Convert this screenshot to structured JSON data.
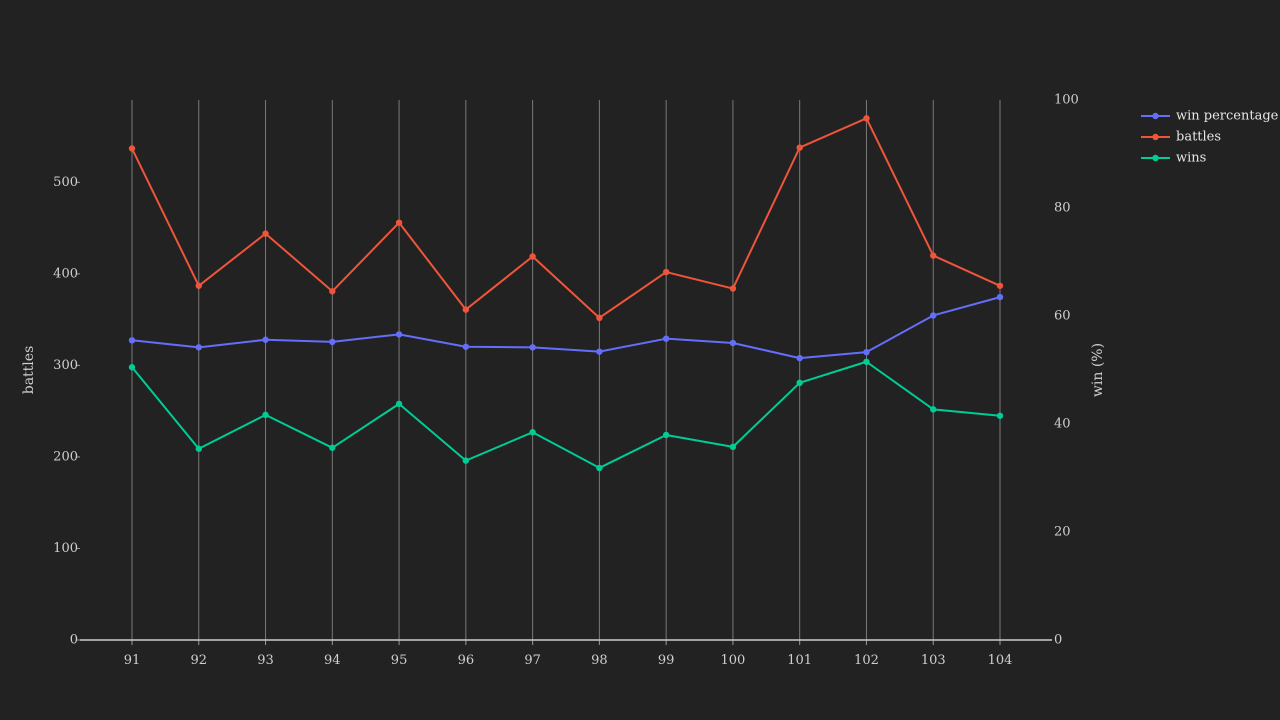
{
  "chart_data": {
    "type": "line",
    "x": [
      "91",
      "92",
      "93",
      "94",
      "95",
      "96",
      "97",
      "98",
      "99",
      "100",
      "101",
      "102",
      "103",
      "104"
    ],
    "series": [
      {
        "name": "win percentage",
        "axis": "right",
        "color": "#636efa",
        "values": [
          55.5,
          54.2,
          55.6,
          55.2,
          56.6,
          54.3,
          54.2,
          53.4,
          55.8,
          55.0,
          52.2,
          53.3,
          60.1,
          63.5
        ]
      },
      {
        "name": "battles",
        "axis": "left",
        "color": "#ef553b",
        "values": [
          537,
          387,
          444,
          381,
          456,
          361,
          419,
          352,
          402,
          384,
          538,
          570,
          420,
          387
        ]
      },
      {
        "name": "wins",
        "axis": "left",
        "color": "#00cc96",
        "values": [
          298,
          209,
          246,
          210,
          258,
          196,
          227,
          188,
          224,
          211,
          281,
          304,
          252,
          245
        ]
      }
    ],
    "y_left": {
      "label": "battles",
      "range": [
        0,
        590
      ],
      "ticks": [
        0,
        100,
        200,
        300,
        400,
        500
      ]
    },
    "y_right": {
      "label": "win (%)",
      "range": [
        0,
        100
      ],
      "ticks": [
        0,
        20,
        40,
        60,
        80,
        100
      ]
    },
    "xgrid": true,
    "legend_position": "top-right"
  }
}
